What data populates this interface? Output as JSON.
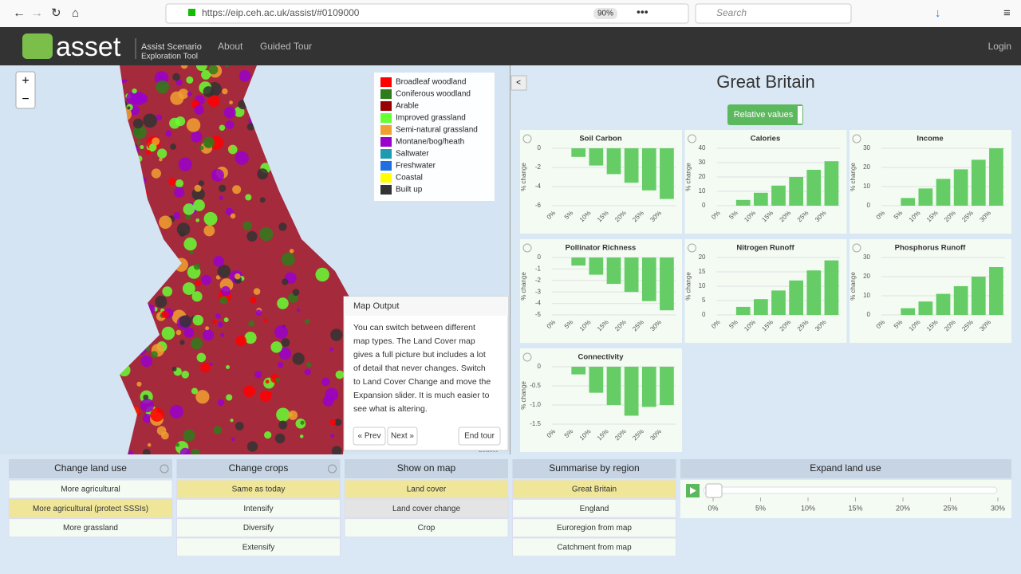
{
  "browser": {
    "url": "https://eip.ceh.ac.uk/assist/#0109000",
    "zoom": "90%",
    "search": "Search"
  },
  "nav": {
    "brand": "asset",
    "brand_sub1": "Assist Scenario",
    "brand_sub2": "Exploration Tool",
    "links": [
      "About",
      "Guided Tour"
    ],
    "login": "Login"
  },
  "map": {
    "zoom_in": "+",
    "zoom_out": "−",
    "attribution": "Leaflet",
    "legend": [
      {
        "name": "Broadleaf woodland",
        "color": "#ff0000"
      },
      {
        "name": "Coniferous woodland",
        "color": "#2e7d1a"
      },
      {
        "name": "Arable",
        "color": "#990000"
      },
      {
        "name": "Improved grassland",
        "color": "#66ff33"
      },
      {
        "name": "Semi-natural grassland",
        "color": "#f0a030"
      },
      {
        "name": "Montane/bog/heath",
        "color": "#9900cc"
      },
      {
        "name": "Saltwater",
        "color": "#1f9bb0"
      },
      {
        "name": "Freshwater",
        "color": "#1f6fe0"
      },
      {
        "name": "Coastal",
        "color": "#ffff00"
      },
      {
        "name": "Built up",
        "color": "#333333"
      }
    ]
  },
  "tooltip": {
    "title": "Map Output",
    "body": [
      "You can switch between different",
      "map types. The Land Cover map",
      "gives a full picture but includes a lot",
      "of detail that never changes. Switch",
      "to Land Cover Change and move the",
      "Expansion slider. It is much easier to",
      "see what is altering."
    ],
    "prev": "« Prev",
    "next": "Next »",
    "end": "End tour"
  },
  "panel": {
    "collapse": "<",
    "region": "Great Britain",
    "toggle": "Relative values"
  },
  "chart_data": [
    {
      "type": "bar",
      "title": "Soil Carbon",
      "ylabel": "% change",
      "color": "#66cc66",
      "categories": [
        "0%",
        "5%",
        "10%",
        "15%",
        "20%",
        "25%",
        "30%"
      ],
      "values": [
        0,
        -0.9,
        -1.8,
        -2.7,
        -3.6,
        -4.4,
        -5.3
      ],
      "ylim": [
        -6,
        0
      ],
      "yticks": [
        0,
        -2,
        -4,
        -6
      ],
      "grid": true
    },
    {
      "type": "bar",
      "title": "Calories",
      "ylabel": "% change",
      "color": "#66cc66",
      "categories": [
        "0%",
        "5%",
        "10%",
        "15%",
        "20%",
        "25%",
        "30%"
      ],
      "values": [
        0,
        4,
        9,
        14,
        20,
        25,
        31
      ],
      "ylim": [
        0,
        40
      ],
      "yticks": [
        0,
        10,
        20,
        30,
        40
      ],
      "grid": true
    },
    {
      "type": "bar",
      "title": "Income",
      "ylabel": "% change",
      "color": "#66cc66",
      "categories": [
        "0%",
        "5%",
        "10%",
        "15%",
        "20%",
        "25%",
        "30%"
      ],
      "values": [
        0,
        4,
        9,
        14,
        19,
        24,
        30
      ],
      "ylim": [
        0,
        30
      ],
      "yticks": [
        0,
        10,
        20,
        30
      ],
      "grid": true
    },
    {
      "type": "bar",
      "title": "Pollinator Richness",
      "ylabel": "% change",
      "color": "#66cc66",
      "categories": [
        "0%",
        "5%",
        "10%",
        "15%",
        "20%",
        "25%",
        "30%"
      ],
      "values": [
        0,
        -0.7,
        -1.5,
        -2.3,
        -3.0,
        -3.8,
        -4.6
      ],
      "ylim": [
        -5,
        0
      ],
      "yticks": [
        0,
        -1,
        -2,
        -3,
        -4,
        -5
      ],
      "grid": true
    },
    {
      "type": "bar",
      "title": "Nitrogen Runoff",
      "ylabel": "% change",
      "color": "#66cc66",
      "categories": [
        "0%",
        "5%",
        "10%",
        "15%",
        "20%",
        "25%",
        "30%"
      ],
      "values": [
        0,
        2.8,
        5.5,
        8.5,
        12,
        15.5,
        19
      ],
      "ylim": [
        0,
        20
      ],
      "yticks": [
        0,
        5,
        10,
        15,
        20
      ],
      "grid": true
    },
    {
      "type": "bar",
      "title": "Phosphorus Runoff",
      "ylabel": "% change",
      "color": "#66cc66",
      "categories": [
        "0%",
        "5%",
        "10%",
        "15%",
        "20%",
        "25%",
        "30%"
      ],
      "values": [
        0,
        3.5,
        7,
        11,
        15,
        20,
        25
      ],
      "ylim": [
        0,
        30
      ],
      "yticks": [
        0,
        10,
        20,
        30
      ],
      "grid": true
    },
    {
      "type": "bar",
      "title": "Connectivity",
      "ylabel": "% change",
      "color": "#66cc66",
      "categories": [
        "0%",
        "5%",
        "10%",
        "15%",
        "20%",
        "25%",
        "30%"
      ],
      "values": [
        0,
        -0.2,
        -0.68,
        -1.0,
        -1.28,
        -1.05,
        -1.0
      ],
      "ylim": [
        -1.5,
        0
      ],
      "yticks": [
        0,
        -0.5,
        {
          "value": -1,
          "label": "-1.0"
        },
        -1.5
      ],
      "grid": true
    }
  ],
  "controls": [
    {
      "title": "Change land use",
      "info": true,
      "selected": 1,
      "options": [
        "More agricultural",
        "More agricultural (protect SSSIs)",
        "More grassland"
      ]
    },
    {
      "title": "Change crops",
      "info": true,
      "selected": 0,
      "options": [
        "Same as today",
        "Intensify",
        "Diversify",
        "Extensify"
      ]
    },
    {
      "title": "Show on map",
      "info": false,
      "selected": 0,
      "hovered": 1,
      "options": [
        "Land cover",
        "Land cover change",
        "Crop"
      ]
    },
    {
      "title": "Summarise by region",
      "info": false,
      "selected": 0,
      "options": [
        "Great Britain",
        "England",
        "Euroregion from map",
        "Catchment from map"
      ]
    }
  ],
  "expand": {
    "title": "Expand land use",
    "ticks": [
      "0%",
      "5%",
      "10%",
      "15%",
      "20%",
      "25%",
      "30%"
    ]
  }
}
